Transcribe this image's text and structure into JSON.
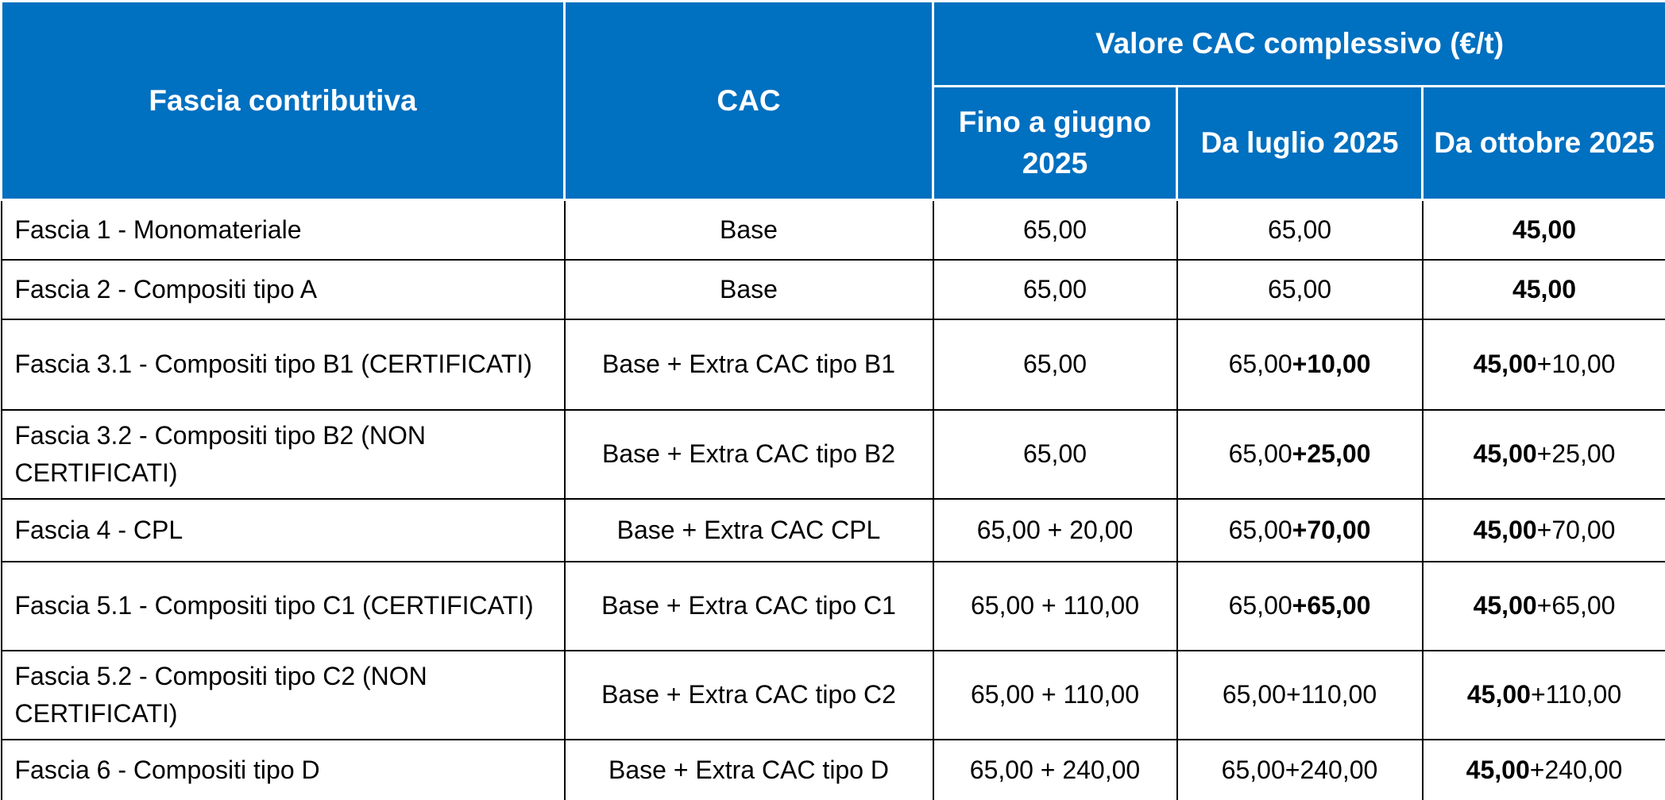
{
  "table": {
    "header": {
      "first": "Fascia contributiva",
      "second": "CAC",
      "group": "Valore CAC complessivo (€/t)",
      "periods": [
        "Fino a giugno 2025",
        "Da luglio 2025",
        "Da ottobre 2025"
      ]
    },
    "rows": [
      [
        "Fascia 1 - Monomateriale",
        "Base",
        "65,00",
        "65,00",
        [
          {
            "text": "45,00",
            "bold": true
          }
        ]
      ],
      [
        "Fascia 2 - Compositi tipo A",
        "Base",
        "65,00",
        "65,00",
        [
          {
            "text": "45,00",
            "bold": true
          }
        ]
      ],
      [
        "Fascia 3.1 - Compositi tipo B1 (CERTIFICATI)",
        "Base + Extra CAC tipo B1",
        "65,00",
        [
          {
            "text": "65,00"
          },
          {
            "text": "+10,00",
            "bold": true
          }
        ],
        [
          {
            "text": "45,00",
            "bold": true
          },
          {
            "text": "+10,00"
          }
        ]
      ],
      [
        "Fascia 3.2 - Compositi tipo B2 (NON CERTIFICATI)",
        "Base + Extra CAC tipo B2",
        "65,00",
        [
          {
            "text": "65,00"
          },
          {
            "text": "+25,00",
            "bold": true
          }
        ],
        [
          {
            "text": "45,00",
            "bold": true
          },
          {
            "text": "+25,00"
          }
        ]
      ],
      [
        "Fascia 4 - CPL",
        "Base + Extra CAC CPL",
        "65,00 + 20,00",
        [
          {
            "text": "65,00"
          },
          {
            "text": "+70,00",
            "bold": true
          }
        ],
        [
          {
            "text": "45,00",
            "bold": true
          },
          {
            "text": "+70,00"
          }
        ]
      ],
      [
        "Fascia 5.1 - Compositi tipo C1 (CERTIFICATI)",
        "Base + Extra CAC tipo C1",
        "65,00 + 110,00",
        [
          {
            "text": "65,00"
          },
          {
            "text": "+65,00",
            "bold": true
          }
        ],
        [
          {
            "text": "45,00",
            "bold": true
          },
          {
            "text": "+65,00"
          }
        ]
      ],
      [
        "Fascia 5.2 - Compositi tipo C2 (NON CERTIFICATI)",
        "Base + Extra CAC tipo C2",
        "65,00 + 110,00",
        "65,00+110,00",
        [
          {
            "text": "45,00",
            "bold": true
          },
          {
            "text": "+110,00"
          }
        ]
      ],
      [
        "Fascia 6 - Compositi tipo D",
        "Base + Extra CAC tipo D",
        "65,00 + 240,00",
        "65,00+240,00",
        [
          {
            "text": "45,00",
            "bold": true
          },
          {
            "text": "+240,00"
          }
        ]
      ]
    ]
  }
}
